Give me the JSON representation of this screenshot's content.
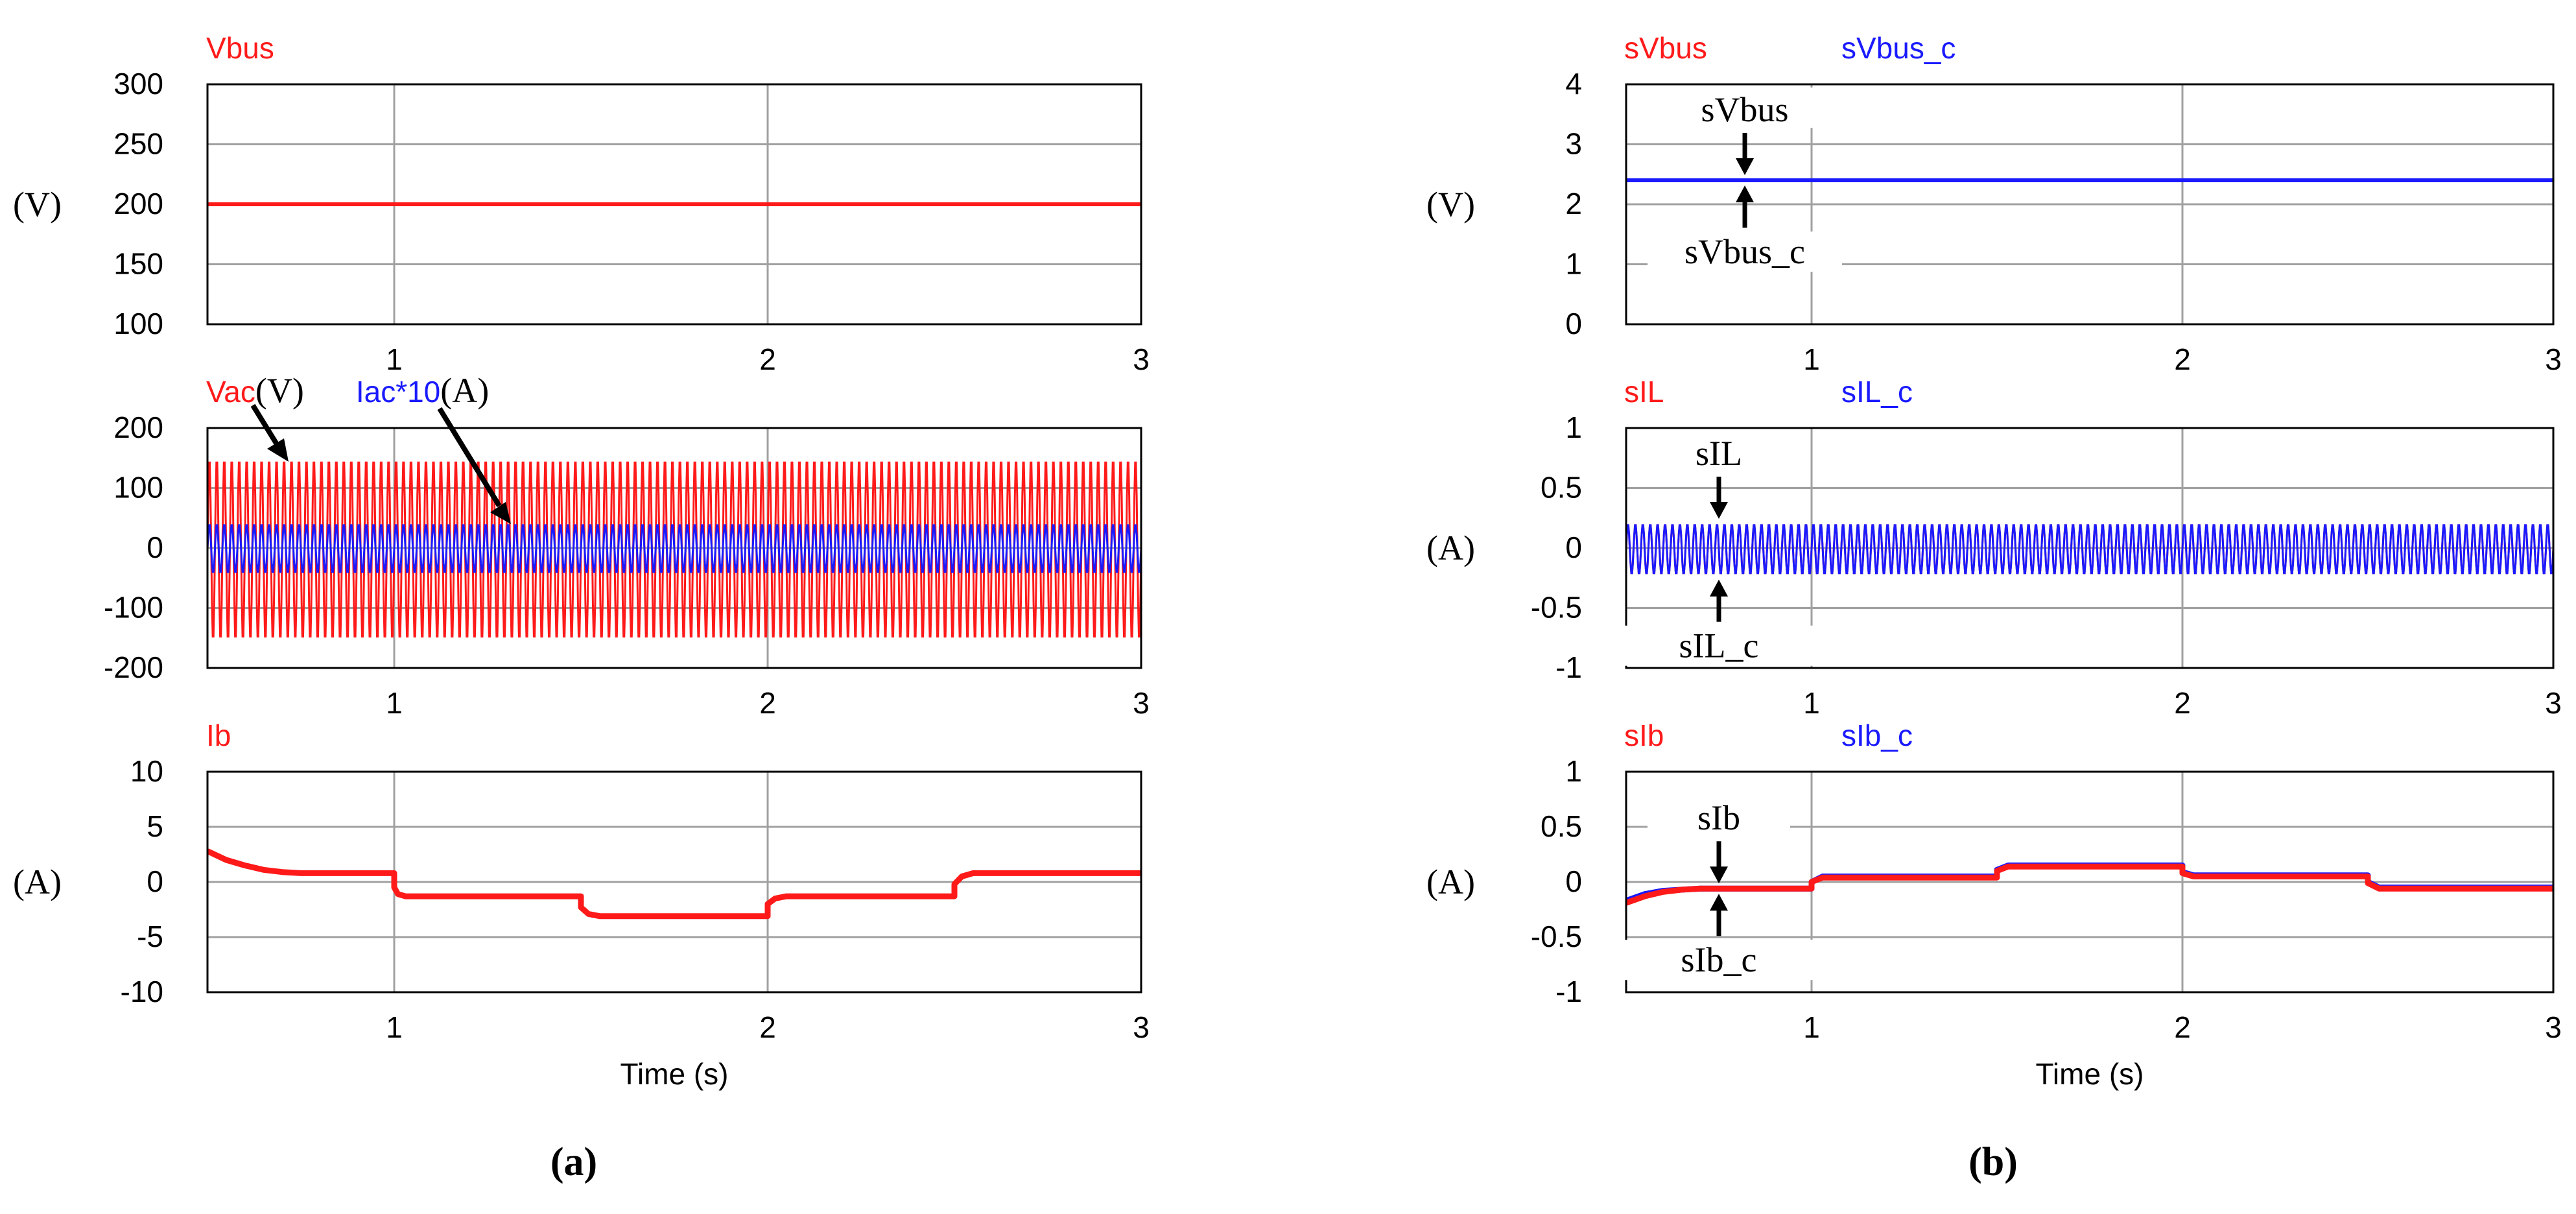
{
  "colors": {
    "red": "#ff1a1a",
    "blue": "#1a1aff",
    "purple": "#7a1a8a",
    "grid": "#a0a0a0",
    "frame": "#000000"
  },
  "panel_labels": [
    "(a)",
    "(b)"
  ],
  "chart_data": [
    {
      "type": "line",
      "id": "a1",
      "column": "a",
      "series_labels": [
        {
          "text": "Vbus",
          "color": "red"
        }
      ],
      "yunit": "(V)",
      "ylim": [
        100,
        300
      ],
      "yticks": [
        100,
        150,
        200,
        250,
        300
      ],
      "xlim": [
        0.5,
        3
      ],
      "xticks": [
        1,
        2,
        3
      ],
      "series": [
        {
          "name": "Vbus",
          "color": "red",
          "x": [
            0.5,
            3.0
          ],
          "y": [
            200,
            200
          ]
        }
      ],
      "annotations": []
    },
    {
      "type": "line",
      "id": "a2",
      "column": "a",
      "series_labels": [
        {
          "text": "Vac",
          "color": "red"
        },
        {
          "text": "(V)",
          "color": "black",
          "serif": true
        },
        {
          "text": "Iac*10",
          "color": "blue"
        },
        {
          "text": "(A)",
          "color": "black",
          "serif": true
        }
      ],
      "yunit": "",
      "ylim": [
        -200,
        200
      ],
      "yticks": [
        -200,
        -100,
        0,
        100,
        200
      ],
      "xlim": [
        0.5,
        3
      ],
      "xticks": [
        1,
        2,
        3
      ],
      "oscillations": [
        {
          "name": "Vac",
          "color": "red",
          "frequency_hz": 50,
          "amplitude_min": -155,
          "amplitude_max": 150
        },
        {
          "name": "Iac*10",
          "color": "blue",
          "frequency_hz": 50,
          "amplitude_min": -42,
          "amplitude_max": 40
        }
      ],
      "annotations": []
    },
    {
      "type": "line",
      "id": "a3",
      "column": "a",
      "series_labels": [
        {
          "text": "Ib",
          "color": "red"
        }
      ],
      "yunit": "(A)",
      "ylim": [
        -10,
        10
      ],
      "yticks": [
        -10,
        -5,
        0,
        5,
        10
      ],
      "xlim": [
        0.5,
        3
      ],
      "xticks": [
        1,
        2,
        3
      ],
      "xlabel": "Time (s)",
      "series": [
        {
          "name": "Ib",
          "color": "red",
          "x": [
            0.5,
            0.55,
            0.6,
            0.65,
            0.7,
            0.75,
            0.8,
            0.9,
            1.0,
            1.0,
            1.01,
            1.03,
            1.5,
            1.5,
            1.52,
            1.55,
            2.0,
            2.0,
            2.02,
            2.05,
            2.5,
            2.5,
            2.52,
            2.55,
            3.0
          ],
          "y": [
            2.8,
            2.0,
            1.5,
            1.1,
            0.9,
            0.8,
            0.8,
            0.8,
            0.8,
            -0.5,
            -1.1,
            -1.3,
            -1.3,
            -2.3,
            -2.9,
            -3.1,
            -3.1,
            -2.0,
            -1.5,
            -1.3,
            -1.3,
            -0.2,
            0.5,
            0.8,
            0.8
          ]
        }
      ],
      "annotations": []
    },
    {
      "type": "line",
      "id": "b1",
      "column": "b",
      "series_labels": [
        {
          "text": "sVbus",
          "color": "red"
        },
        {
          "text": "sVbus_c",
          "color": "blue"
        }
      ],
      "yunit": "(V)",
      "ylim": [
        0,
        4
      ],
      "yticks": [
        0,
        1,
        2,
        3,
        4
      ],
      "xlim": [
        0.5,
        3
      ],
      "xticks": [
        1,
        2,
        3
      ],
      "series": [
        {
          "name": "sVbus",
          "color": "red",
          "x": [
            0.5,
            3.0
          ],
          "y": [
            2.4,
            2.4
          ]
        },
        {
          "name": "sVbus_c",
          "color": "blue",
          "x": [
            0.5,
            3.0
          ],
          "y": [
            2.4,
            2.4
          ]
        }
      ],
      "annotations": [
        {
          "text": "sVbus",
          "from": "above",
          "x": 0.82,
          "y": 2.4
        },
        {
          "text": "sVbus_c",
          "from": "below",
          "x": 0.82,
          "y": 2.4
        }
      ]
    },
    {
      "type": "line",
      "id": "b2",
      "column": "b",
      "series_labels": [
        {
          "text": "sIL",
          "color": "red"
        },
        {
          "text": "sIL_c",
          "color": "blue"
        }
      ],
      "yunit": "(A)",
      "ylim": [
        -1,
        1
      ],
      "yticks": [
        -1,
        -0.5,
        0,
        0.5,
        1
      ],
      "xlim": [
        0.5,
        3
      ],
      "xticks": [
        1,
        2,
        3
      ],
      "oscillations": [
        {
          "name": "sIL",
          "color": "red",
          "frequency_hz": 50,
          "amplitude_min": -0.22,
          "amplitude_max": 0.2
        },
        {
          "name": "sIL_c",
          "color": "blue",
          "frequency_hz": 50,
          "amplitude_min": -0.22,
          "amplitude_max": 0.2
        }
      ],
      "annotations": [
        {
          "text": "sIL",
          "from": "above",
          "x": 0.75,
          "y": 0.2
        },
        {
          "text": "sIL_c",
          "from": "below",
          "x": 0.75,
          "y": -0.22
        }
      ]
    },
    {
      "type": "line",
      "id": "b3",
      "column": "b",
      "series_labels": [
        {
          "text": "sIb",
          "color": "red"
        },
        {
          "text": "sIb_c",
          "color": "blue"
        }
      ],
      "yunit": "(A)",
      "ylim": [
        -1,
        1
      ],
      "yticks": [
        -1,
        -0.5,
        0,
        0.5,
        1
      ],
      "xlim": [
        0.5,
        3
      ],
      "xticks": [
        1,
        2,
        3
      ],
      "xlabel": "Time (s)",
      "series": [
        {
          "name": "sIb_c",
          "color": "blue",
          "x": [
            0.5,
            0.55,
            0.6,
            0.65,
            0.7,
            0.8,
            1.0,
            1.0,
            1.03,
            1.5,
            1.5,
            1.53,
            2.0,
            2.0,
            2.03,
            2.5,
            2.5,
            2.53,
            3.0
          ],
          "y": [
            -0.17,
            -0.11,
            -0.08,
            -0.07,
            -0.06,
            -0.06,
            -0.06,
            0.0,
            0.05,
            0.05,
            0.11,
            0.15,
            0.15,
            0.09,
            0.06,
            0.06,
            0.0,
            -0.05,
            -0.05
          ]
        },
        {
          "name": "sIb",
          "color": "red",
          "x": [
            0.5,
            0.55,
            0.6,
            0.65,
            0.7,
            0.8,
            1.0,
            1.0,
            1.03,
            1.5,
            1.5,
            1.53,
            2.0,
            2.0,
            2.03,
            2.5,
            2.5,
            2.53,
            3.0
          ],
          "y": [
            -0.19,
            -0.13,
            -0.09,
            -0.07,
            -0.06,
            -0.06,
            -0.06,
            0.0,
            0.04,
            0.04,
            0.1,
            0.14,
            0.14,
            0.08,
            0.05,
            0.05,
            -0.01,
            -0.06,
            -0.06
          ]
        }
      ],
      "annotations": [
        {
          "text": "sIb",
          "from": "above",
          "x": 0.75,
          "y": -0.06
        },
        {
          "text": "sIb_c",
          "from": "below",
          "x": 0.75,
          "y": -0.06
        }
      ]
    }
  ]
}
